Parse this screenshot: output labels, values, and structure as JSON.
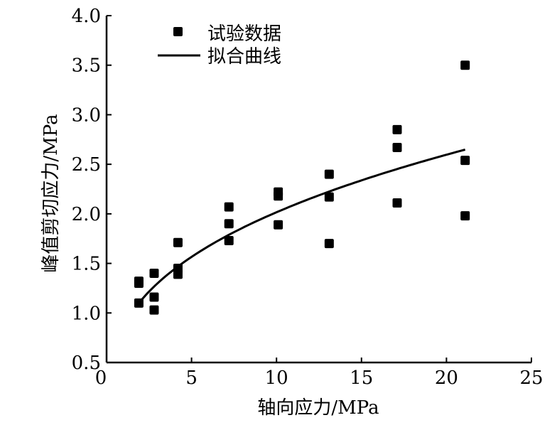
{
  "chart_data": {
    "type": "scatter",
    "title": "",
    "xlabel": "轴向应力/MPa",
    "ylabel": "峰值剪切应力/MPa",
    "xlim": [
      0,
      25
    ],
    "ylim": [
      0.5,
      4.0
    ],
    "xticks": [
      "0",
      "5",
      "10",
      "15",
      "20",
      "25"
    ],
    "xtick_values": [
      0,
      5,
      10,
      15,
      20,
      25
    ],
    "yticks": [
      "0.5",
      "1.0",
      "1.5",
      "2.0",
      "2.5",
      "3.0",
      "3.5",
      "4.0"
    ],
    "ytick_values": [
      0.5,
      1.0,
      1.5,
      2.0,
      2.5,
      3.0,
      3.5,
      4.0
    ],
    "legend_position": "top-left",
    "grid": false,
    "series": [
      {
        "name": "试验数据",
        "kind": "scatter",
        "points": [
          [
            1.9,
            1.32
          ],
          [
            1.9,
            1.3
          ],
          [
            1.9,
            1.1
          ],
          [
            2.8,
            1.4
          ],
          [
            2.8,
            1.16
          ],
          [
            2.8,
            1.03
          ],
          [
            4.2,
            1.71
          ],
          [
            4.2,
            1.45
          ],
          [
            4.2,
            1.39
          ],
          [
            7.2,
            2.07
          ],
          [
            7.2,
            1.9
          ],
          [
            7.2,
            1.73
          ],
          [
            10.1,
            2.22
          ],
          [
            10.1,
            2.18
          ],
          [
            10.1,
            1.89
          ],
          [
            13.1,
            2.4
          ],
          [
            13.1,
            2.17
          ],
          [
            13.1,
            1.7
          ],
          [
            17.1,
            2.85
          ],
          [
            17.1,
            2.67
          ],
          [
            17.1,
            2.11
          ],
          [
            21.1,
            3.5
          ],
          [
            21.1,
            2.54
          ],
          [
            21.1,
            1.98
          ]
        ]
      },
      {
        "name": "拟合曲线",
        "kind": "line",
        "fit": {
          "form": "power",
          "a": 0.87,
          "b": 0.365,
          "x_range": [
            1.9,
            21.1
          ]
        }
      }
    ]
  }
}
